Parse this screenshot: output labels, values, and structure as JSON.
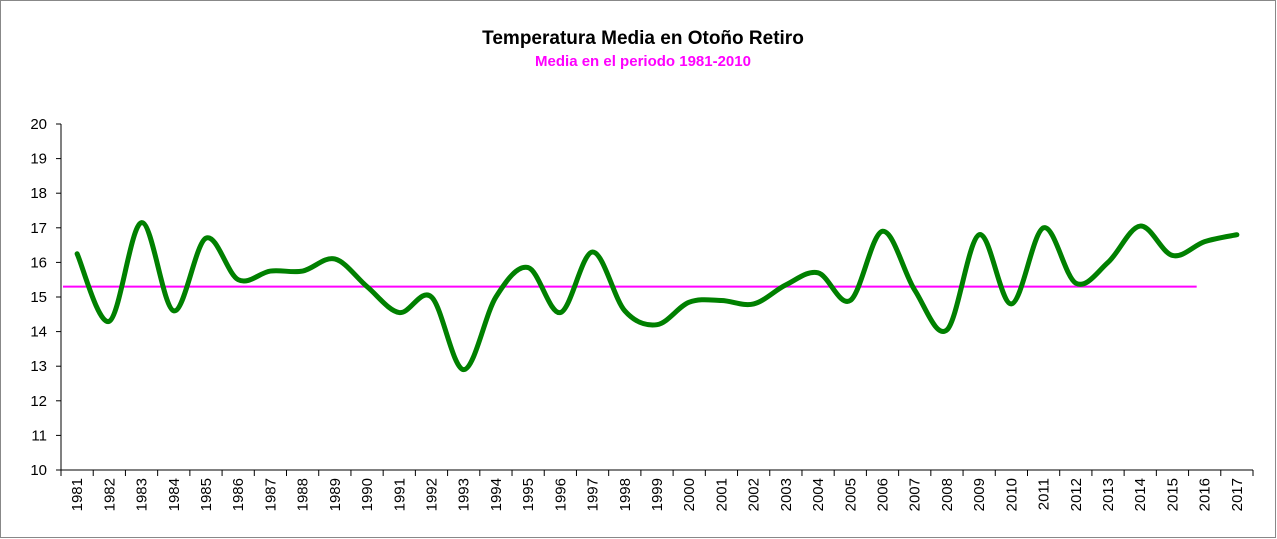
{
  "chart_data": {
    "type": "line",
    "title": "Temperatura Media en Otoño Retiro",
    "subtitle": "Media en el periodo 1981-2010",
    "subtitle_color": "#ff00ff",
    "categories": [
      "1981",
      "1982",
      "1983",
      "1984",
      "1985",
      "1986",
      "1987",
      "1988",
      "1989",
      "1990",
      "1991",
      "1992",
      "1993",
      "1994",
      "1995",
      "1996",
      "1997",
      "1998",
      "1999",
      "2000",
      "2001",
      "2002",
      "2003",
      "2004",
      "2005",
      "2006",
      "2007",
      "2008",
      "2009",
      "2010",
      "2011",
      "2012",
      "2013",
      "2014",
      "2015",
      "2016",
      "2017"
    ],
    "series": [
      {
        "color": "#008000",
        "values": [
          16.25,
          14.3,
          17.15,
          14.6,
          16.7,
          15.5,
          15.75,
          15.75,
          16.1,
          15.3,
          14.55,
          15.0,
          12.9,
          15.0,
          15.85,
          14.55,
          16.3,
          14.6,
          14.2,
          14.85,
          14.9,
          14.8,
          15.35,
          15.7,
          14.9,
          16.9,
          15.2,
          14.05,
          16.8,
          14.8,
          17.0,
          15.4,
          16.0,
          17.05,
          16.2,
          16.6,
          16.8
        ]
      }
    ],
    "reference_line": {
      "value": 15.3,
      "color": "#ff00ff"
    },
    "ylim": [
      10,
      20
    ],
    "yticks": [
      10,
      11,
      12,
      13,
      14,
      15,
      16,
      17,
      18,
      19,
      20
    ],
    "smooth": true
  }
}
